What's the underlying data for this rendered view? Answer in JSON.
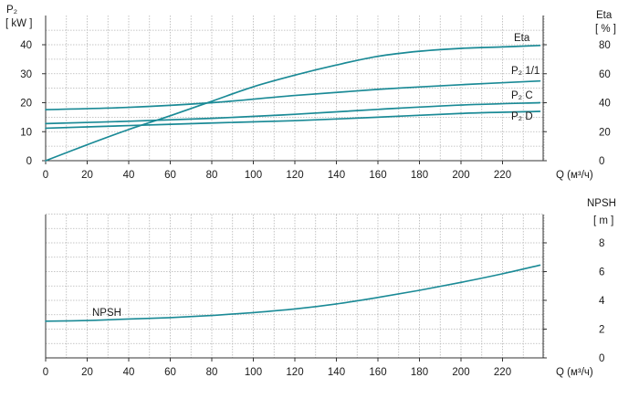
{
  "chart_data": [
    {
      "type": "line",
      "x_tick_labels": [
        "0",
        "20",
        "40",
        "60",
        "80",
        "100",
        "120",
        "140",
        "160",
        "180",
        "200",
        "220"
      ],
      "xlim": [
        0,
        240
      ],
      "xlabel": "Q (м³/ч)",
      "left_axis": {
        "label_top": "P₂",
        "label_unit": "[ kW ]",
        "ylim": [
          0,
          45
        ],
        "ticks": [
          "0",
          "10",
          "20",
          "30",
          "40"
        ]
      },
      "right_axis": {
        "label_top": "Eta",
        "label_unit": "[ % ]",
        "ylim": [
          0,
          90
        ],
        "ticks": [
          "0",
          "20",
          "40",
          "60",
          "80"
        ]
      },
      "grid": true,
      "series": [
        {
          "name": "Eta",
          "axis": "right",
          "color": "#1a8a96",
          "x": [
            0,
            20,
            40,
            60,
            80,
            100,
            120,
            140,
            160,
            180,
            200,
            220,
            238
          ],
          "y": [
            0,
            11,
            21.5,
            31,
            41,
            51,
            59,
            66,
            72,
            75.5,
            77.5,
            78.5,
            79.5
          ]
        },
        {
          "name": "P₂ 1/1",
          "axis": "left",
          "color": "#1a8a96",
          "x": [
            0,
            40,
            80,
            120,
            160,
            200,
            238
          ],
          "y": [
            17.6,
            18.4,
            20,
            22.5,
            24.6,
            26.2,
            27.5
          ]
        },
        {
          "name": "P₂ C",
          "axis": "left",
          "color": "#1a8a96",
          "x": [
            0,
            40,
            80,
            120,
            160,
            200,
            238
          ],
          "y": [
            12.8,
            13.6,
            14.6,
            16,
            17.7,
            19.2,
            20
          ]
        },
        {
          "name": "P₂ D",
          "axis": "left",
          "color": "#1a8a96",
          "x": [
            0,
            40,
            80,
            120,
            160,
            200,
            238
          ],
          "y": [
            11.2,
            12.1,
            13,
            13.8,
            15,
            16.3,
            17
          ]
        }
      ]
    },
    {
      "type": "line",
      "x_tick_labels": [
        "0",
        "20",
        "40",
        "60",
        "80",
        "100",
        "120",
        "140",
        "160",
        "180",
        "200",
        "220"
      ],
      "xlim": [
        0,
        240
      ],
      "xlabel": "Q (м³/ч)",
      "right_axis": {
        "label_top": "NPSH",
        "label_unit": "[ m ]",
        "ylim": [
          0,
          10
        ],
        "ticks": [
          "0",
          "2",
          "4",
          "6",
          "8"
        ]
      },
      "grid": true,
      "series": [
        {
          "name": "NPSH",
          "axis": "right",
          "color": "#1a8a96",
          "x": [
            0,
            20,
            40,
            60,
            80,
            100,
            120,
            140,
            160,
            180,
            200,
            220,
            238
          ],
          "y": [
            2.55,
            2.6,
            2.7,
            2.8,
            2.95,
            3.15,
            3.4,
            3.75,
            4.2,
            4.7,
            5.25,
            5.85,
            6.45
          ]
        }
      ]
    }
  ]
}
